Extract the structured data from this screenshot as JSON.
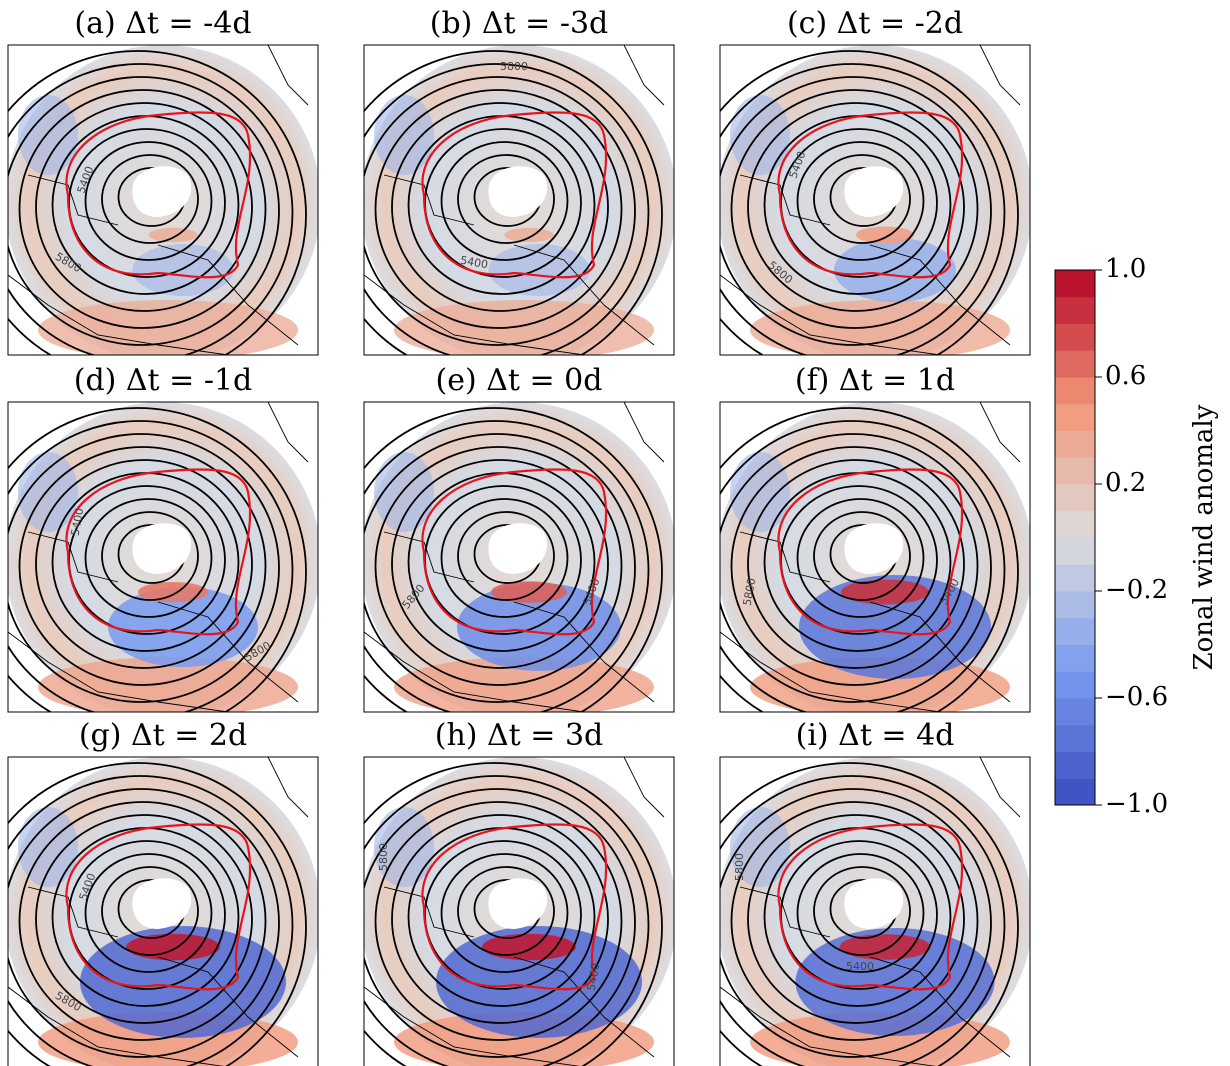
{
  "panels": [
    {
      "title": "(a) Δt = -4d",
      "contour_labels": [
        5400,
        5800
      ]
    },
    {
      "title": "(b) Δt = -3d",
      "contour_labels": [
        5800,
        5400
      ]
    },
    {
      "title": "(c) Δt = -2d",
      "contour_labels": [
        5400,
        5800
      ]
    },
    {
      "title": "(d) Δt = -1d",
      "contour_labels": [
        5400,
        5800
      ]
    },
    {
      "title": "(e) Δt = 0d",
      "contour_labels": [
        5800,
        5400
      ]
    },
    {
      "title": "(f) Δt = 1d",
      "contour_labels": [
        5800,
        5400
      ]
    },
    {
      "title": "(g) Δt = 2d",
      "contour_labels": [
        5400,
        5800
      ]
    },
    {
      "title": "(h) Δt = 3d",
      "contour_labels": [
        5800,
        5400
      ]
    },
    {
      "title": "(i) Δt = 4d",
      "contour_labels": [
        5800,
        5400
      ]
    }
  ],
  "colorbar": {
    "label": "Zonal wind anomaly",
    "lim": [
      -1,
      1
    ],
    "ticks": [
      {
        "value": 1,
        "label": "1.0"
      },
      {
        "value": 0.6,
        "label": "0.6"
      },
      {
        "value": 0.2,
        "label": "0.2"
      },
      {
        "value": -0.2,
        "label": "−0.2"
      },
      {
        "value": -0.6,
        "label": "−0.6"
      },
      {
        "value": -1,
        "label": "−1.0"
      }
    ]
  }
}
